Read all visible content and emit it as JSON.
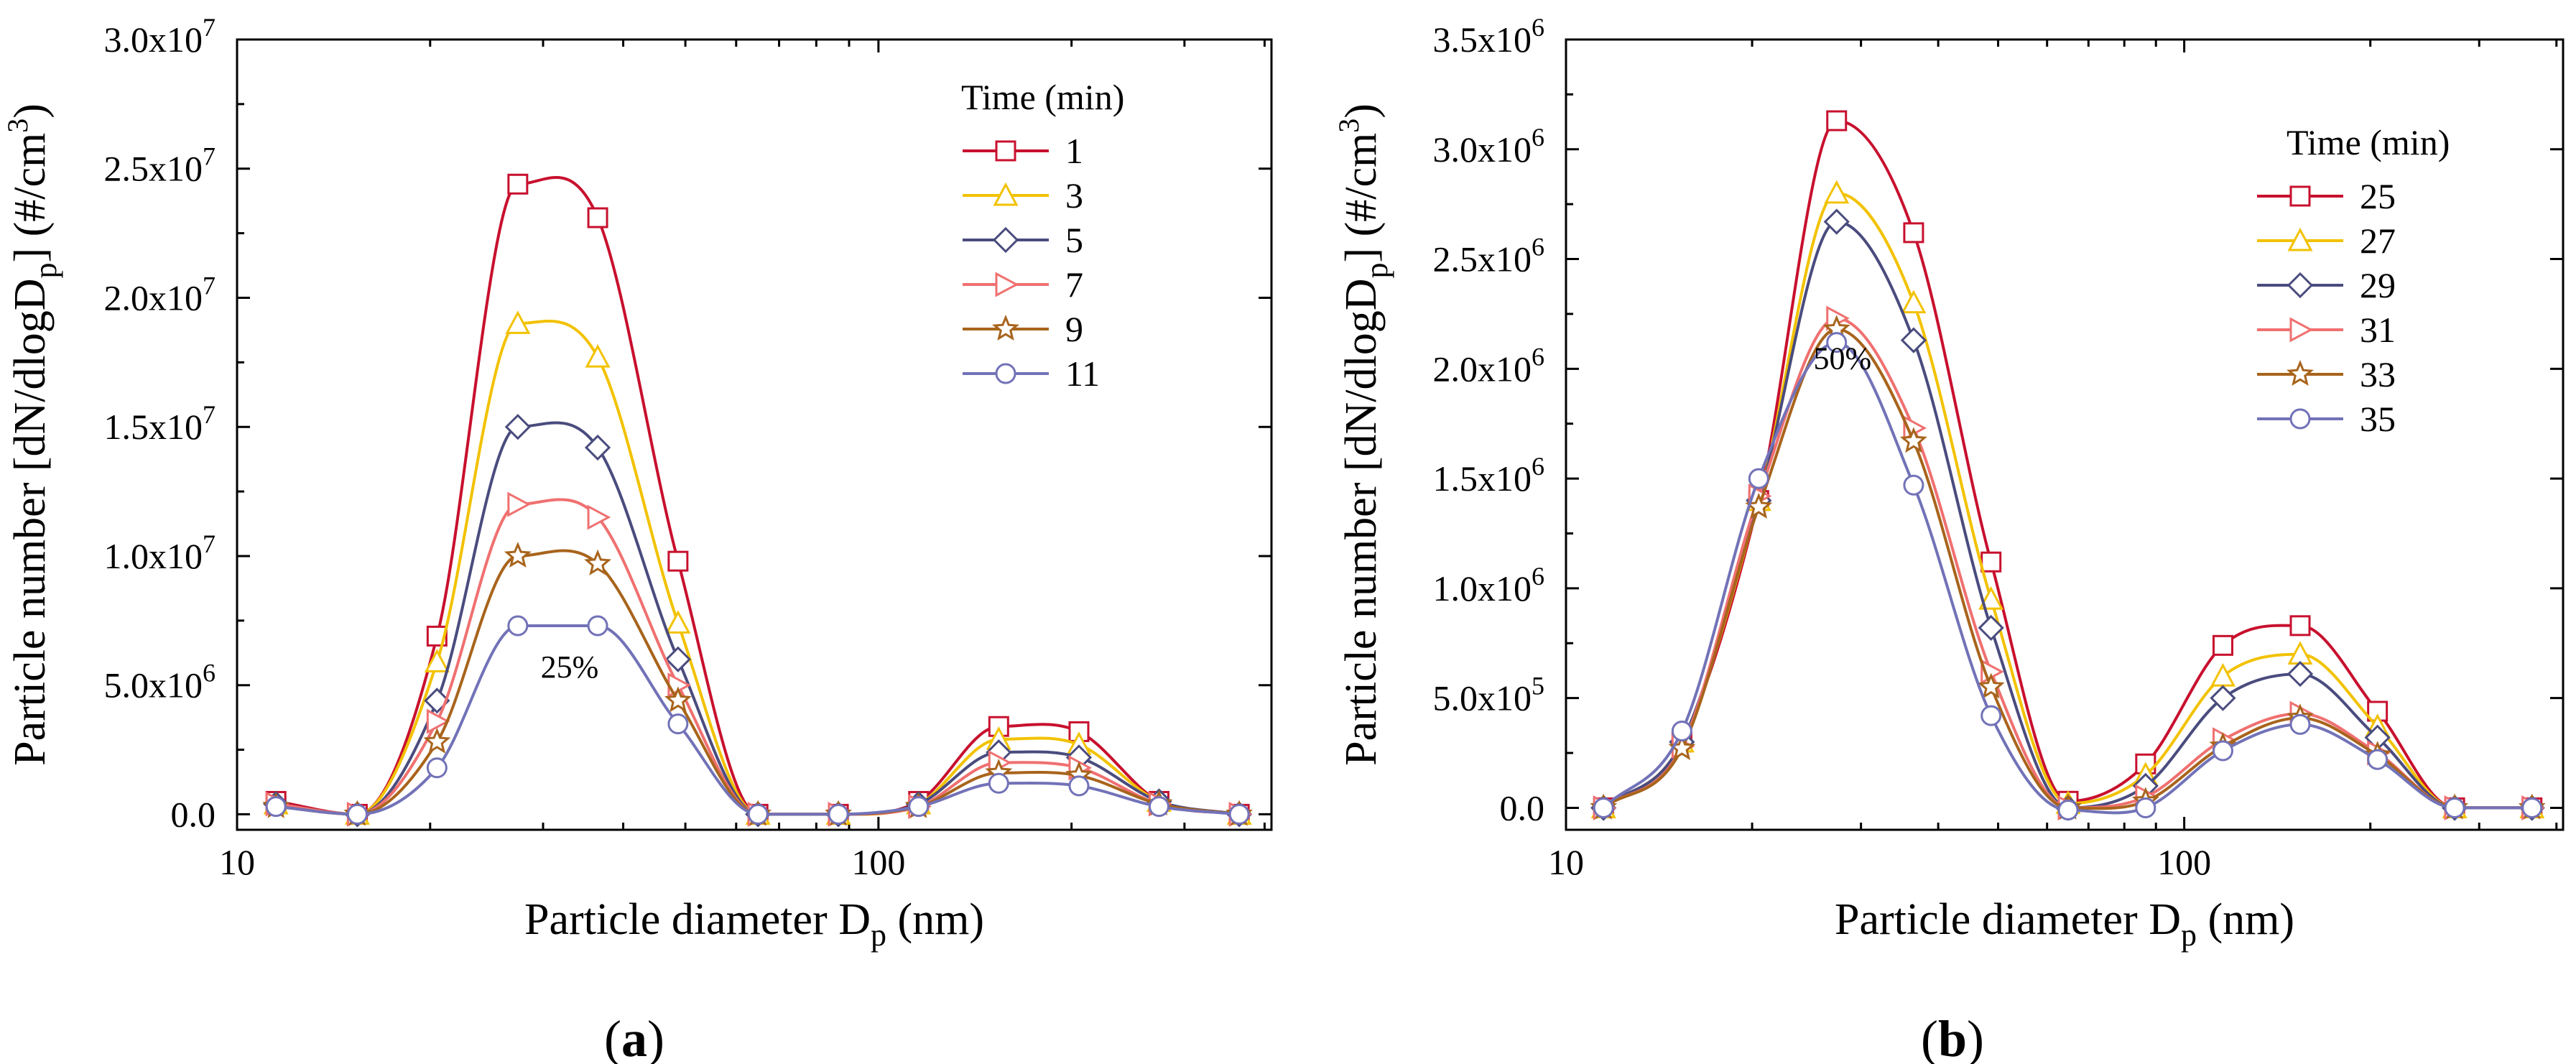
{
  "chart_data": [
    {
      "panel": "a",
      "type": "line",
      "xscale": "log",
      "xlabel_main": "Particle diameter D",
      "xlabel_sub": "p",
      "xlabel_end": " (nm)",
      "ylabel_main": "Particle number [dN/dlogD",
      "ylabel_sub": "p",
      "ylabel_mid": "] (#/cm",
      "ylabel_sup": "3",
      "ylabel_end": ")",
      "xlim": [
        10,
        410
      ],
      "ylim": [
        -0.6,
        30
      ],
      "xticks": [
        {
          "value": 10,
          "label": "10"
        },
        {
          "value": 100,
          "label": "100"
        }
      ],
      "yticks": [
        {
          "value": 0,
          "mant": "0.0",
          "exp": ""
        },
        {
          "value": 5,
          "mant": "5.0x10",
          "exp": "6"
        },
        {
          "value": 10,
          "mant": "1.0x10",
          "exp": "7"
        },
        {
          "value": 15,
          "mant": "1.5x10",
          "exp": "7"
        },
        {
          "value": 20,
          "mant": "2.0x10",
          "exp": "7"
        },
        {
          "value": 25,
          "mant": "2.5x10",
          "exp": "7"
        },
        {
          "value": 30,
          "mant": "3.0x10",
          "exp": "7"
        }
      ],
      "y_unit_note": "values in units of 10^6 #/cm3",
      "x": [
        11.5,
        15.4,
        20.5,
        27.4,
        36.5,
        48.7,
        64.9,
        86.6,
        115.5,
        154.0,
        205.4,
        273.8,
        365.2
      ],
      "series": [
        {
          "name": "1",
          "color": "#c8102e",
          "marker": "square",
          "values": [
            0.5,
            0.0,
            6.9,
            24.4,
            23.1,
            9.8,
            0.0,
            0.0,
            0.5,
            3.4,
            3.2,
            0.5,
            0.0
          ]
        },
        {
          "name": "3",
          "color": "#f2c200",
          "marker": "triangle-up",
          "values": [
            0.4,
            0.0,
            5.9,
            19.0,
            17.7,
            7.4,
            0.0,
            0.0,
            0.4,
            2.9,
            2.7,
            0.5,
            0.0
          ]
        },
        {
          "name": "5",
          "color": "#4a4c7e",
          "marker": "diamond",
          "values": [
            0.4,
            0.0,
            4.4,
            15.0,
            14.2,
            6.0,
            0.0,
            0.0,
            0.4,
            2.4,
            2.2,
            0.5,
            0.0
          ]
        },
        {
          "name": "7",
          "color": "#f07070",
          "marker": "triangle-right",
          "values": [
            0.4,
            0.0,
            3.6,
            12.0,
            11.5,
            5.0,
            0.0,
            0.0,
            0.3,
            2.0,
            1.8,
            0.4,
            0.0
          ]
        },
        {
          "name": "9",
          "color": "#a8641c",
          "marker": "star",
          "values": [
            0.3,
            0.0,
            2.8,
            10.0,
            9.7,
            4.4,
            0.0,
            0.0,
            0.3,
            1.6,
            1.5,
            0.4,
            0.0
          ]
        },
        {
          "name": "11",
          "color": "#7272b8",
          "marker": "circle",
          "values": [
            0.3,
            0.0,
            1.8,
            7.3,
            7.3,
            3.5,
            0.0,
            0.0,
            0.3,
            1.2,
            1.1,
            0.3,
            0.0
          ]
        }
      ],
      "legend_title": "Time (min)",
      "annotation": {
        "text": "25%",
        "x": 33,
        "y": 5.3
      }
    },
    {
      "panel": "b",
      "type": "line",
      "xscale": "log",
      "xlabel_main": "Particle diameter D",
      "xlabel_sub": "p",
      "xlabel_end": " (nm)",
      "ylabel_main": "Particle number [dN/dlogD",
      "ylabel_sub": "p",
      "ylabel_mid": "] (#/cm",
      "ylabel_sup": "3",
      "ylabel_end": ")",
      "xlim": [
        10,
        410
      ],
      "ylim": [
        -0.1,
        3.5
      ],
      "xticks": [
        {
          "value": 10,
          "label": "10"
        },
        {
          "value": 100,
          "label": "100"
        }
      ],
      "yticks": [
        {
          "value": 0,
          "mant": "0.0",
          "exp": ""
        },
        {
          "value": 0.5,
          "mant": "5.0x10",
          "exp": "5"
        },
        {
          "value": 1.0,
          "mant": "1.0x10",
          "exp": "6"
        },
        {
          "value": 1.5,
          "mant": "1.5x10",
          "exp": "6"
        },
        {
          "value": 2.0,
          "mant": "2.0x10",
          "exp": "6"
        },
        {
          "value": 2.5,
          "mant": "2.5x10",
          "exp": "6"
        },
        {
          "value": 3.0,
          "mant": "3.0x10",
          "exp": "6"
        },
        {
          "value": 3.5,
          "mant": "3.5x10",
          "exp": "6"
        }
      ],
      "y_unit_note": "values in units of 10^6 #/cm3",
      "x": [
        11.5,
        15.4,
        20.5,
        27.4,
        36.5,
        48.7,
        64.9,
        86.6,
        115.5,
        154.0,
        205.4,
        273.8,
        365.2
      ],
      "series": [
        {
          "name": "25",
          "color": "#c8102e",
          "marker": "square",
          "values": [
            0.0,
            0.3,
            1.4,
            3.13,
            2.62,
            1.12,
            0.03,
            0.2,
            0.74,
            0.83,
            0.44,
            0.0,
            0.0
          ]
        },
        {
          "name": "27",
          "color": "#f2c200",
          "marker": "triangle-up",
          "values": [
            0.0,
            0.3,
            1.4,
            2.8,
            2.3,
            0.95,
            0.02,
            0.15,
            0.6,
            0.7,
            0.37,
            0.0,
            0.0
          ]
        },
        {
          "name": "29",
          "color": "#4a4c7e",
          "marker": "diamond",
          "values": [
            0.0,
            0.3,
            1.4,
            2.67,
            2.13,
            0.82,
            0.0,
            0.1,
            0.5,
            0.61,
            0.32,
            0.0,
            0.0
          ]
        },
        {
          "name": "31",
          "color": "#f07070",
          "marker": "triangle-right",
          "values": [
            0.0,
            0.28,
            1.42,
            2.23,
            1.73,
            0.62,
            0.0,
            0.05,
            0.31,
            0.43,
            0.25,
            0.0,
            0.0
          ]
        },
        {
          "name": "33",
          "color": "#a8641c",
          "marker": "star",
          "values": [
            0.0,
            0.27,
            1.37,
            2.18,
            1.67,
            0.55,
            0.0,
            0.03,
            0.28,
            0.41,
            0.24,
            0.0,
            0.0
          ]
        },
        {
          "name": "35",
          "color": "#7272b8",
          "marker": "circle",
          "values": [
            0.0,
            0.35,
            1.5,
            2.12,
            1.47,
            0.42,
            -0.01,
            0.0,
            0.26,
            0.38,
            0.22,
            0.0,
            0.0
          ]
        }
      ],
      "legend_title": "Time (min)",
      "annotation": {
        "text": "50%",
        "x": 28,
        "y": 2.0
      }
    }
  ],
  "captions": [
    {
      "open": "(",
      "letter": "a",
      "close": ")"
    },
    {
      "open": "(",
      "letter": "b",
      "close": ")"
    }
  ]
}
